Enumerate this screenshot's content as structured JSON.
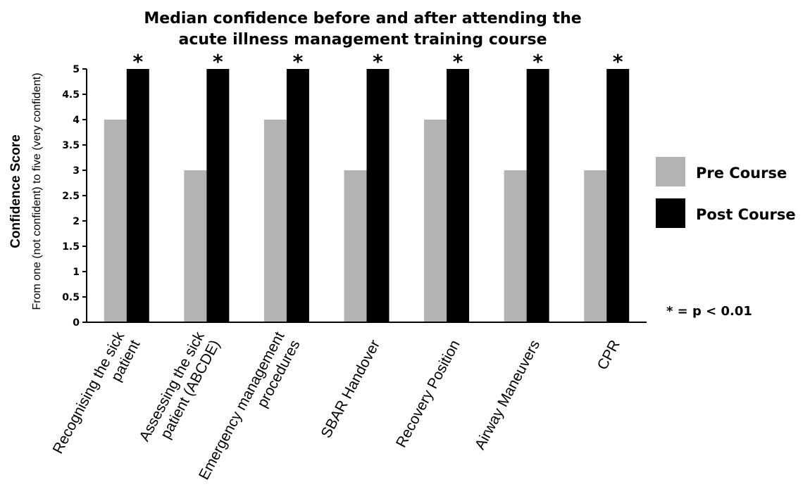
{
  "chart_data": {
    "type": "bar",
    "title_lines": [
      "Median confidence before and after attending the",
      "acute illness management training course"
    ],
    "ylabel": "Confidence Score",
    "ylabel_sub": "From one (not confident) to five (very confident)",
    "xlabel": "",
    "ylim": [
      0,
      5
    ],
    "yticks": [
      "0",
      "0.5",
      "1",
      "1.5",
      "2",
      "2.5",
      "3",
      "3.5",
      "4",
      "4.5",
      "5"
    ],
    "categories": [
      [
        "Recognising the sick",
        "patient"
      ],
      [
        "Assessing the sick",
        "patient (ABCDE)"
      ],
      [
        "Emergency management",
        "procedures"
      ],
      [
        "SBAR Handover"
      ],
      [
        "Recovery Position"
      ],
      [
        "Airway Maneuvers"
      ],
      [
        "CPR"
      ]
    ],
    "series": [
      {
        "name": "Pre Course",
        "color": "#b3b3b3",
        "values": [
          4,
          3,
          4,
          3,
          4,
          3,
          3
        ]
      },
      {
        "name": "Post Course",
        "color": "#000000",
        "values": [
          5,
          5,
          5,
          5,
          5,
          5,
          5
        ]
      }
    ],
    "significance_marker": "*",
    "significant": [
      true,
      true,
      true,
      true,
      true,
      true,
      true
    ],
    "annotation": "* = p < 0.01",
    "legend_position": "right",
    "grid": false
  }
}
